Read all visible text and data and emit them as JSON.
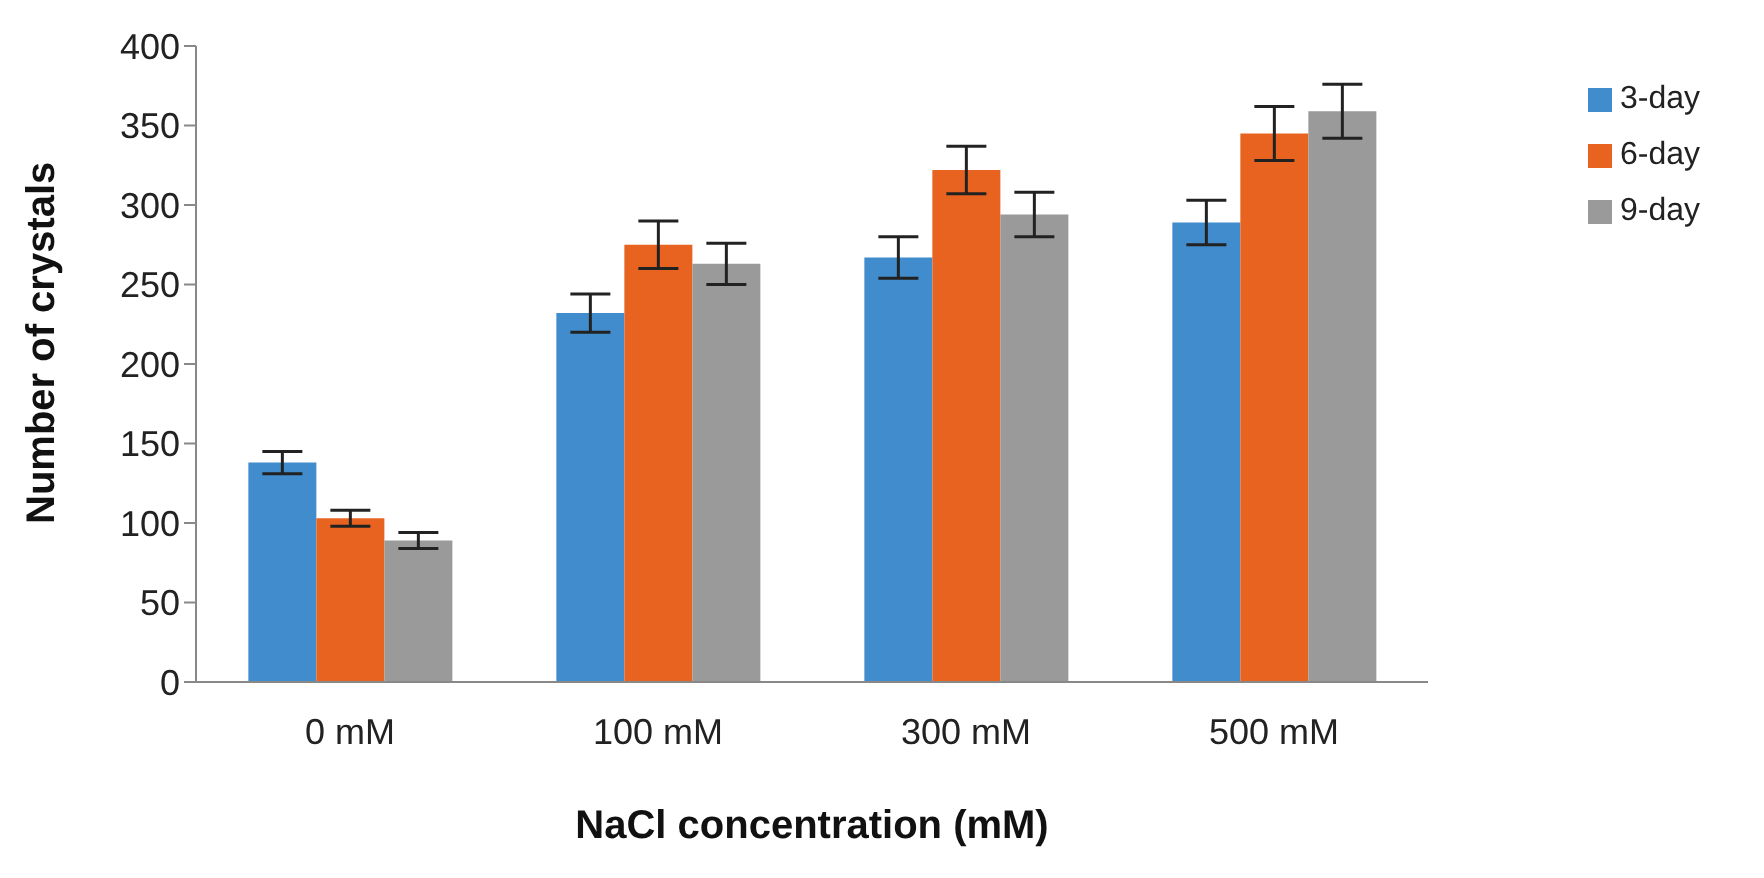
{
  "chart_data": {
    "type": "bar",
    "xlabel": "NaCl concentration (mM)",
    "ylabel": "Number of crystals",
    "categories": [
      "0 mM",
      "100 mM",
      "300 mM",
      "500 mM"
    ],
    "series": [
      {
        "name": "3-day",
        "color": "#418ccc",
        "values": [
          138,
          232,
          267,
          289
        ],
        "errors": [
          7,
          12,
          13,
          14
        ]
      },
      {
        "name": "6-day",
        "color": "#e7631f",
        "values": [
          103,
          275,
          322,
          345
        ],
        "errors": [
          5,
          15,
          15,
          17
        ]
      },
      {
        "name": "9-day",
        "color": "#9a9a9a",
        "values": [
          89,
          263,
          294,
          359
        ],
        "errors": [
          5,
          13,
          14,
          17
        ]
      }
    ],
    "ylim": [
      0,
      400
    ],
    "yticks": [
      0,
      50,
      100,
      150,
      200,
      250,
      300,
      350,
      400
    ],
    "grid": false,
    "legend": "top right"
  }
}
